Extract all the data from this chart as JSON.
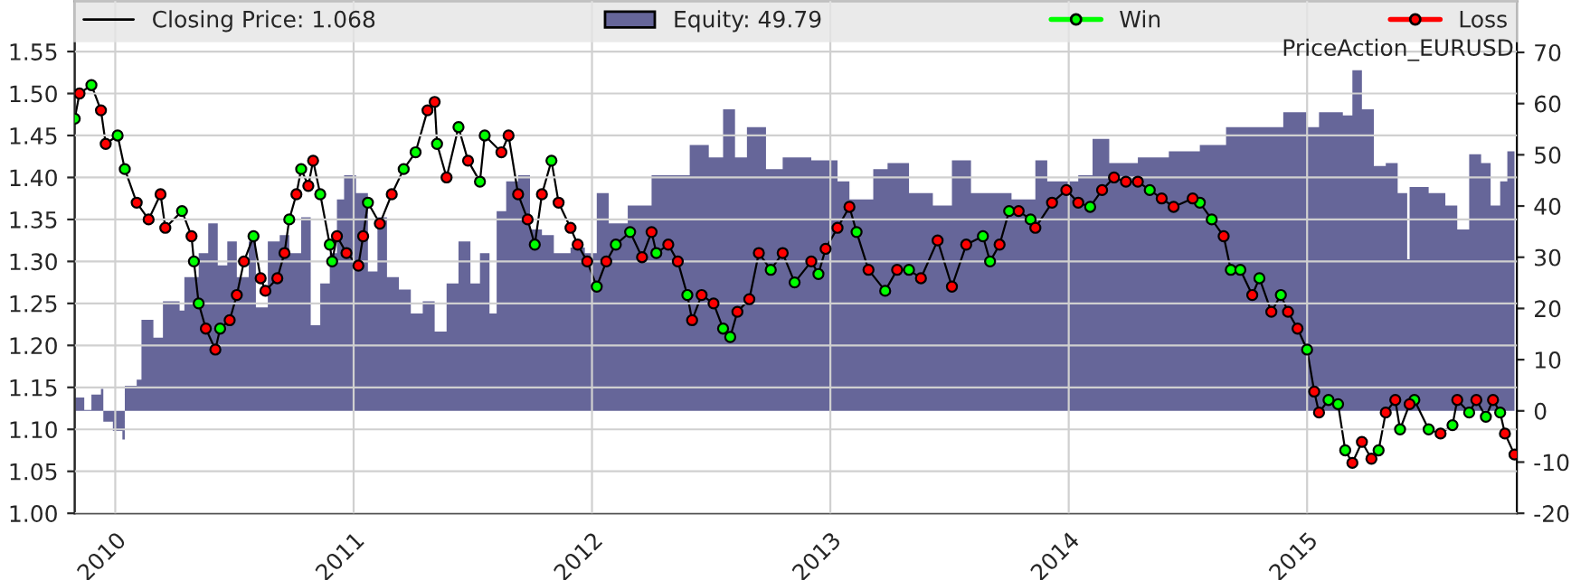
{
  "chart_data": {
    "type": "line",
    "title": "PriceAction_EURUSD",
    "x": [
      2009.83,
      2009.85,
      2009.9,
      2009.94,
      2009.96,
      2010.01,
      2010.04,
      2010.09,
      2010.14,
      2010.19,
      2010.21,
      2010.28,
      2010.32,
      2010.33,
      2010.35,
      2010.38,
      2010.42,
      2010.44,
      2010.48,
      2010.51,
      2010.54,
      2010.58,
      2010.61,
      2010.63,
      2010.68,
      2010.71,
      2010.73,
      2010.76,
      2010.78,
      2010.81,
      2010.83,
      2010.86,
      2010.9,
      2010.91,
      2010.93,
      2010.97,
      2011.02,
      2011.04,
      2011.06,
      2011.11,
      2011.16,
      2011.21,
      2011.26,
      2011.31,
      2011.34,
      2011.35,
      2011.39,
      2011.44,
      2011.48,
      2011.53,
      2011.55,
      2011.62,
      2011.65,
      2011.69,
      2011.73,
      2011.76,
      2011.79,
      2011.83,
      2011.86,
      2011.91,
      2011.94,
      2011.98,
      2012.02,
      2012.06,
      2012.1,
      2012.16,
      2012.21,
      2012.25,
      2012.27,
      2012.32,
      2012.36,
      2012.4,
      2012.42,
      2012.46,
      2012.51,
      2012.55,
      2012.58,
      2012.61,
      2012.66,
      2012.7,
      2012.75,
      2012.8,
      2012.85,
      2012.92,
      2012.95,
      2012.98,
      2013.03,
      2013.08,
      2013.11,
      2013.16,
      2013.23,
      2013.28,
      2013.33,
      2013.38,
      2013.45,
      2013.51,
      2013.57,
      2013.64,
      2013.67,
      2013.71,
      2013.75,
      2013.79,
      2013.84,
      2013.86,
      2013.93,
      2013.99,
      2014.04,
      2014.09,
      2014.14,
      2014.19,
      2014.24,
      2014.29,
      2014.34,
      2014.39,
      2014.44,
      2014.52,
      2014.55,
      2014.6,
      2014.65,
      2014.68,
      2014.72,
      2014.77,
      2014.8,
      2014.85,
      2014.89,
      2014.92,
      2014.96,
      2015.0,
      2015.03,
      2015.05,
      2015.09,
      2015.13,
      2015.16,
      2015.19,
      2015.23,
      2015.27,
      2015.3,
      2015.33,
      2015.37,
      2015.39,
      2015.43,
      2015.45,
      2015.51,
      2015.56,
      2015.61,
      2015.63,
      2015.68,
      2015.71,
      2015.75,
      2015.78,
      2015.81,
      2015.83,
      2015.87
    ],
    "series": [
      {
        "name": "Closing Price: 1.068",
        "color": "#000000",
        "values": [
          1.47,
          1.5,
          1.51,
          1.48,
          1.44,
          1.45,
          1.41,
          1.37,
          1.35,
          1.38,
          1.34,
          1.36,
          1.33,
          1.3,
          1.25,
          1.22,
          1.195,
          1.22,
          1.23,
          1.26,
          1.3,
          1.33,
          1.28,
          1.265,
          1.28,
          1.31,
          1.35,
          1.38,
          1.41,
          1.39,
          1.42,
          1.38,
          1.32,
          1.3,
          1.33,
          1.31,
          1.295,
          1.33,
          1.37,
          1.345,
          1.38,
          1.41,
          1.43,
          1.48,
          1.49,
          1.44,
          1.4,
          1.46,
          1.42,
          1.395,
          1.45,
          1.43,
          1.45,
          1.38,
          1.35,
          1.32,
          1.38,
          1.42,
          1.37,
          1.34,
          1.32,
          1.3,
          1.27,
          1.3,
          1.32,
          1.335,
          1.305,
          1.335,
          1.31,
          1.32,
          1.3,
          1.26,
          1.23,
          1.26,
          1.25,
          1.22,
          1.21,
          1.24,
          1.255,
          1.31,
          1.29,
          1.31,
          1.275,
          1.3,
          1.285,
          1.315,
          1.34,
          1.365,
          1.335,
          1.29,
          1.265,
          1.29,
          1.29,
          1.28,
          1.325,
          1.27,
          1.32,
          1.33,
          1.3,
          1.32,
          1.36,
          1.36,
          1.35,
          1.34,
          1.37,
          1.385,
          1.37,
          1.365,
          1.385,
          1.4,
          1.395,
          1.395,
          1.385,
          1.375,
          1.365,
          1.375,
          1.37,
          1.35,
          1.33,
          1.29,
          1.29,
          1.26,
          1.28,
          1.24,
          1.26,
          1.24,
          1.22,
          1.195,
          1.145,
          1.12,
          1.135,
          1.13,
          1.075,
          1.06,
          1.085,
          1.065,
          1.075,
          1.12,
          1.135,
          1.1,
          1.13,
          1.135,
          1.1,
          1.095,
          1.105,
          1.135,
          1.12,
          1.135,
          1.115,
          1.135,
          1.12,
          1.095,
          1.07
        ]
      },
      {
        "name": "Equity: 49.79",
        "type": "area",
        "axis": "y2",
        "color": "#666699",
        "x": [
          2009.83,
          2009.87,
          2009.9,
          2009.94,
          2009.95,
          2009.99,
          2010.03,
          2010.04,
          2010.09,
          2010.11,
          2010.16,
          2010.2,
          2010.27,
          2010.29,
          2010.35,
          2010.39,
          2010.43,
          2010.47,
          2010.51,
          2010.56,
          2010.59,
          2010.64,
          2010.69,
          2010.73,
          2010.78,
          2010.82,
          2010.86,
          2010.9,
          2010.93,
          2010.96,
          2011.01,
          2011.06,
          2011.1,
          2011.14,
          2011.19,
          2011.24,
          2011.29,
          2011.34,
          2011.39,
          2011.44,
          2011.49,
          2011.53,
          2011.57,
          2011.6,
          2011.64,
          2011.69,
          2011.74,
          2011.79,
          2011.84,
          2011.91,
          2011.97,
          2012.02,
          2012.07,
          2012.15,
          2012.25,
          2012.3,
          2012.41,
          2012.49,
          2012.55,
          2012.6,
          2012.65,
          2012.73,
          2012.8,
          2012.92,
          2013.03,
          2013.08,
          2013.18,
          2013.24,
          2013.33,
          2013.43,
          2013.51,
          2013.59,
          2013.69,
          2013.76,
          2013.86,
          2013.91,
          2014.04,
          2014.1,
          2014.17,
          2014.29,
          2014.42,
          2014.55,
          2014.66,
          2014.75,
          2014.9,
          2015.0,
          2015.05,
          2015.15,
          2015.19,
          2015.23,
          2015.28,
          2015.33,
          2015.38,
          2015.42,
          2015.43,
          2015.51,
          2015.58,
          2015.63,
          2015.68,
          2015.73,
          2015.77,
          2015.81,
          2015.84,
          2015.87
        ],
        "values": [
          2.6,
          0.2,
          3.2,
          4.3,
          -2.1,
          -3.9,
          -5.6,
          4.9,
          6.1,
          17.8,
          14.3,
          21.4,
          19.6,
          26.1,
          30.8,
          36.6,
          28.4,
          33.1,
          26.1,
          33.1,
          20.2,
          33.1,
          34.3,
          30.8,
          37.8,
          16.7,
          24.9,
          30.8,
          41.3,
          46.0,
          42.5,
          27.2,
          37.8,
          26.1,
          23.7,
          19.0,
          21.4,
          15.5,
          24.9,
          33.1,
          24.9,
          30.8,
          19.0,
          39.0,
          44.8,
          46.0,
          35.4,
          34.3,
          30.8,
          31.9,
          30.8,
          42.5,
          36.6,
          40.1,
          46.0,
          46.0,
          51.9,
          49.5,
          58.9,
          49.5,
          55.4,
          47.2,
          49.5,
          48.9,
          44.8,
          41.3,
          47.2,
          48.4,
          42.5,
          40.1,
          48.9,
          42.5,
          42.5,
          41.3,
          48.9,
          44.8,
          46.0,
          53.1,
          48.4,
          49.5,
          50.7,
          51.9,
          55.4,
          55.4,
          58.3,
          55.4,
          58.3,
          57.7,
          66.5,
          58.9,
          47.8,
          48.4,
          42.5,
          29.6,
          43.7,
          42.5,
          40.1,
          35.4,
          50.1,
          48.4,
          40.1,
          44.8,
          50.7,
          49.5
        ]
      },
      {
        "name": "Win",
        "type": "scatter",
        "marker": "circle",
        "color": "#00ff00",
        "values": [
          1.47,
          null,
          1.51,
          null,
          null,
          1.45,
          1.41,
          null,
          null,
          null,
          null,
          1.36,
          null,
          1.3,
          1.25,
          null,
          null,
          1.22,
          null,
          null,
          null,
          1.33,
          null,
          null,
          null,
          null,
          1.35,
          null,
          1.41,
          null,
          null,
          1.38,
          1.32,
          1.3,
          null,
          null,
          null,
          null,
          1.37,
          null,
          null,
          1.41,
          1.43,
          null,
          null,
          1.44,
          null,
          1.46,
          null,
          1.395,
          1.45,
          null,
          null,
          null,
          null,
          1.32,
          null,
          1.42,
          null,
          null,
          null,
          null,
          1.27,
          null,
          1.32,
          1.335,
          null,
          null,
          1.31,
          null,
          null,
          1.26,
          null,
          null,
          null,
          1.22,
          1.21,
          null,
          null,
          null,
          1.29,
          null,
          1.275,
          null,
          1.285,
          null,
          null,
          null,
          1.335,
          null,
          1.265,
          null,
          1.29,
          null,
          null,
          null,
          null,
          1.33,
          1.3,
          null,
          1.36,
          null,
          1.35,
          null,
          null,
          null,
          null,
          1.365,
          null,
          null,
          null,
          null,
          1.385,
          null,
          null,
          null,
          1.37,
          1.35,
          null,
          1.29,
          1.29,
          null,
          1.28,
          null,
          1.26,
          null,
          null,
          1.195,
          null,
          null,
          1.135,
          1.13,
          1.075,
          null,
          null,
          null,
          1.075,
          null,
          null,
          1.1,
          null,
          1.135,
          1.1,
          null,
          1.105,
          null,
          1.12,
          null,
          1.115,
          null,
          1.12,
          null,
          null
        ]
      },
      {
        "name": "Loss",
        "type": "scatter",
        "marker": "circle",
        "color": "#ff0000",
        "values": [
          null,
          1.5,
          null,
          1.48,
          1.44,
          null,
          null,
          1.37,
          1.35,
          1.38,
          1.34,
          null,
          1.33,
          null,
          null,
          1.22,
          1.195,
          null,
          1.23,
          1.26,
          1.3,
          null,
          1.28,
          1.265,
          1.28,
          1.31,
          null,
          1.38,
          null,
          1.39,
          1.42,
          null,
          null,
          null,
          1.33,
          1.31,
          1.295,
          1.33,
          null,
          1.345,
          1.38,
          null,
          null,
          1.48,
          1.49,
          null,
          1.4,
          null,
          1.42,
          null,
          null,
          1.43,
          1.45,
          1.38,
          1.35,
          null,
          1.38,
          null,
          1.37,
          1.34,
          1.32,
          1.3,
          null,
          1.3,
          null,
          null,
          1.305,
          1.335,
          null,
          1.32,
          1.3,
          null,
          1.23,
          1.26,
          1.25,
          null,
          null,
          1.24,
          1.255,
          1.31,
          null,
          1.31,
          null,
          1.3,
          null,
          1.315,
          1.34,
          1.365,
          null,
          1.29,
          null,
          1.29,
          null,
          1.28,
          1.325,
          1.27,
          1.32,
          null,
          null,
          1.32,
          null,
          1.36,
          null,
          1.34,
          1.37,
          1.385,
          1.37,
          null,
          1.385,
          1.4,
          1.395,
          1.395,
          null,
          1.375,
          1.365,
          1.375,
          null,
          null,
          1.33,
          null,
          null,
          1.26,
          null,
          1.24,
          null,
          1.24,
          1.22,
          null,
          1.145,
          1.12,
          null,
          null,
          null,
          1.06,
          1.085,
          1.065,
          null,
          1.12,
          1.135,
          null,
          1.13,
          null,
          null,
          1.095,
          null,
          1.135,
          null,
          1.135,
          null,
          1.135,
          null,
          1.095,
          1.07
        ]
      }
    ],
    "xlim": [
      2009.83,
      2015.88
    ],
    "xticks": [
      2010,
      2011,
      2012,
      2013,
      2014,
      2015
    ],
    "ylim": [
      1.0,
      1.61
    ],
    "yticks": [
      {
        "value": 1.0,
        "label": "1.00"
      },
      {
        "value": 1.05,
        "label": "1.05"
      },
      {
        "value": 1.1,
        "label": "1.10"
      },
      {
        "value": 1.15,
        "label": "1.15"
      },
      {
        "value": 1.2,
        "label": "1.20"
      },
      {
        "value": 1.25,
        "label": "1.25"
      },
      {
        "value": 1.3,
        "label": "1.30"
      },
      {
        "value": 1.35,
        "label": "1.35"
      },
      {
        "value": 1.4,
        "label": "1.40"
      },
      {
        "value": 1.45,
        "label": "1.45"
      },
      {
        "value": 1.5,
        "label": "1.50"
      },
      {
        "value": 1.55,
        "label": "1.55"
      }
    ],
    "y2lim": [
      -20,
      80
    ],
    "y2ticks": [
      -20,
      -10,
      0,
      10,
      20,
      30,
      40,
      50,
      60,
      70
    ],
    "grid": true,
    "legend": "top"
  }
}
